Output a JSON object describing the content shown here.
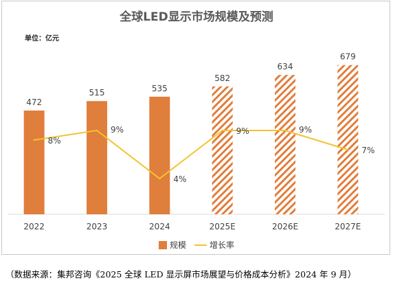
{
  "chart_data": {
    "type": "bar",
    "title": "全球LED显示市场规模及预测",
    "unit_label": "单位：亿元",
    "categories": [
      "2022",
      "2023",
      "2024",
      "2025E",
      "2026E",
      "2027E"
    ],
    "series": [
      {
        "name": "规模",
        "type": "bar",
        "values": [
          472,
          515,
          535,
          582,
          634,
          679
        ],
        "value_labels": [
          "472",
          "515",
          "535",
          "582",
          "634",
          "679"
        ],
        "forecast": [
          false,
          false,
          false,
          true,
          true,
          true
        ]
      },
      {
        "name": "增长率",
        "type": "line",
        "values": [
          8,
          9,
          4,
          9,
          9,
          7
        ],
        "value_labels": [
          "8%",
          "9%",
          "4%",
          "9%",
          "9%",
          "7%"
        ]
      }
    ],
    "ylim": [
      0,
      700
    ],
    "grid": false,
    "legend_position": "bottom"
  },
  "colors": {
    "bar": "#e07e3c",
    "line": "#f2c330",
    "axis": "#d9d9d9",
    "text": "#404040"
  },
  "source_note": "（数据来源：集邦咨询《2025 全球 LED 显示屏市场展望与价格成本分析》2024 年 9 月）"
}
